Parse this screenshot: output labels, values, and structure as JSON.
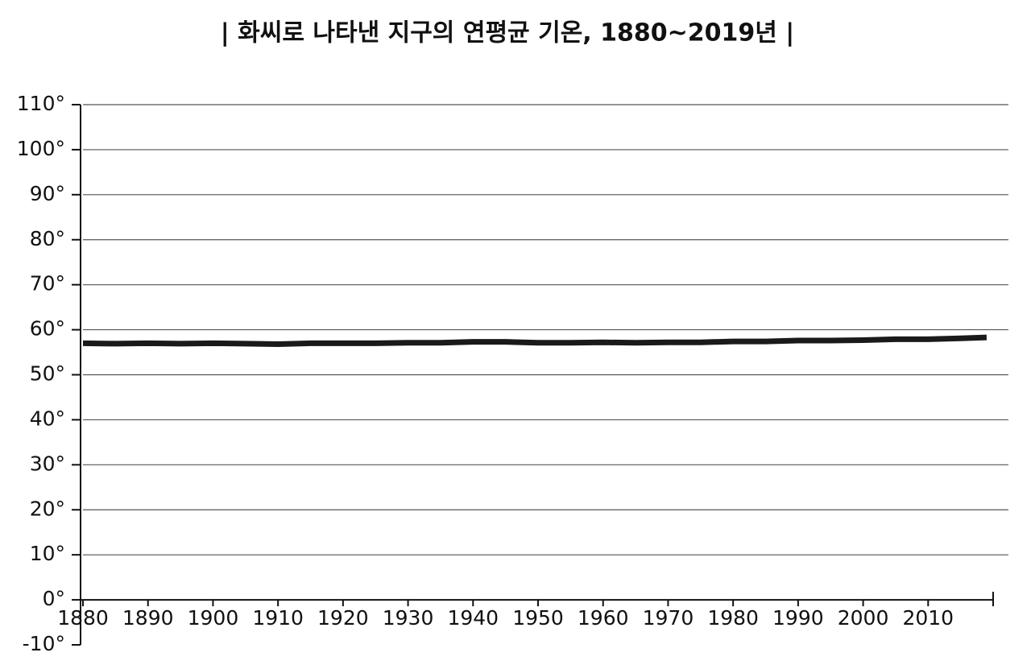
{
  "chart_data": {
    "type": "line",
    "title": "| 화씨로 나타낸 지구의 연평균 기온, 1880~2019년 |",
    "x": [
      1880,
      1885,
      1890,
      1895,
      1900,
      1905,
      1910,
      1915,
      1920,
      1925,
      1930,
      1935,
      1940,
      1945,
      1950,
      1955,
      1960,
      1965,
      1970,
      1975,
      1980,
      1985,
      1990,
      1995,
      2000,
      2005,
      2010,
      2015,
      2019
    ],
    "values": [
      57.0,
      56.9,
      57.0,
      56.9,
      57.0,
      56.9,
      56.8,
      57.0,
      57.0,
      57.0,
      57.1,
      57.1,
      57.3,
      57.3,
      57.1,
      57.1,
      57.2,
      57.1,
      57.2,
      57.2,
      57.4,
      57.4,
      57.6,
      57.6,
      57.7,
      57.9,
      57.9,
      58.1,
      58.3
    ],
    "color": "#1a1a1a",
    "xlim": [
      1880,
      2020
    ],
    "xticks": [
      1880,
      1890,
      1900,
      1910,
      1920,
      1930,
      1940,
      1950,
      1960,
      1970,
      1980,
      1990,
      2000,
      2010
    ],
    "ylim": [
      -10,
      110
    ],
    "yticks": [
      {
        "value": -10,
        "label": "-10°"
      },
      {
        "value": 0,
        "label": "0°"
      },
      {
        "value": 10,
        "label": "10°"
      },
      {
        "value": 20,
        "label": "20°"
      },
      {
        "value": 30,
        "label": "30°"
      },
      {
        "value": 40,
        "label": "40°"
      },
      {
        "value": 50,
        "label": "50°"
      },
      {
        "value": 60,
        "label": "60°"
      },
      {
        "value": 70,
        "label": "70°"
      },
      {
        "value": 80,
        "label": "80°"
      },
      {
        "value": 90,
        "label": "90°"
      },
      {
        "value": 100,
        "label": "100°"
      },
      {
        "value": 110,
        "label": "110°"
      }
    ],
    "grid": true
  }
}
